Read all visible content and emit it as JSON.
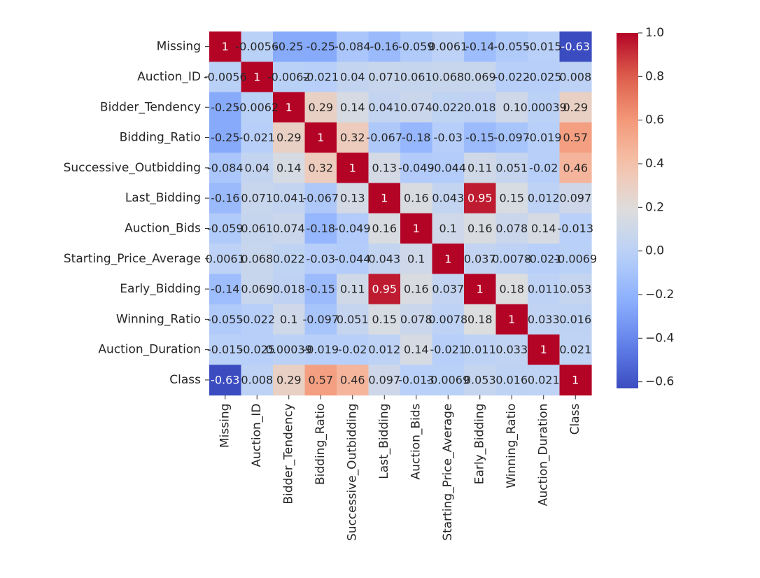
{
  "chart_data": {
    "type": "heatmap",
    "title": "",
    "colormap": "coolwarm",
    "vmin": -0.63,
    "vmax": 1.0,
    "row_labels": [
      "Missing",
      "Auction_ID",
      "Bidder_Tendency",
      "Bidding_Ratio",
      "Successive_Outbidding",
      "Last_Bidding",
      "Auction_Bids",
      "Starting_Price_Average",
      "Early_Bidding",
      "Winning_Ratio",
      "Auction_Duration",
      "Class"
    ],
    "col_labels": [
      "Missing",
      "Auction_ID",
      "Bidder_Tendency",
      "Bidding_Ratio",
      "Successive_Outbidding",
      "Last_Bidding",
      "Auction_Bids",
      "Starting_Price_Average",
      "Early_Bidding",
      "Winning_Ratio",
      "Auction_Duration",
      "Class"
    ],
    "values": [
      [
        1,
        -0.0056,
        -0.25,
        -0.25,
        -0.084,
        -0.16,
        -0.059,
        0.0061,
        -0.14,
        -0.055,
        -0.015,
        -0.63
      ],
      [
        -0.0056,
        1,
        -0.0062,
        -0.021,
        0.04,
        0.071,
        0.061,
        0.068,
        0.069,
        -0.022,
        -0.025,
        0.008
      ],
      [
        -0.25,
        -0.0062,
        1,
        0.29,
        0.14,
        0.041,
        0.074,
        0.022,
        0.018,
        0.1,
        0.00039,
        0.29
      ],
      [
        -0.25,
        -0.021,
        0.29,
        1,
        0.32,
        -0.067,
        -0.18,
        -0.03,
        -0.15,
        -0.097,
        -0.019,
        0.57
      ],
      [
        -0.084,
        0.04,
        0.14,
        0.32,
        1,
        0.13,
        -0.049,
        -0.044,
        0.11,
        0.051,
        -0.02,
        0.46
      ],
      [
        -0.16,
        0.071,
        0.041,
        -0.067,
        0.13,
        1,
        0.16,
        0.043,
        0.95,
        0.15,
        0.012,
        0.097
      ],
      [
        -0.059,
        0.061,
        0.074,
        -0.18,
        -0.049,
        0.16,
        1,
        0.1,
        0.16,
        0.078,
        0.14,
        -0.013
      ],
      [
        0.0061,
        0.068,
        0.022,
        -0.03,
        -0.044,
        0.043,
        0.1,
        1,
        0.037,
        0.0078,
        -0.021,
        -0.0069
      ],
      [
        -0.14,
        0.069,
        0.018,
        -0.15,
        0.11,
        0.95,
        0.16,
        0.037,
        1,
        0.18,
        0.011,
        0.053
      ],
      [
        -0.055,
        -0.022,
        0.1,
        -0.097,
        0.051,
        0.15,
        0.078,
        0.0078,
        0.18,
        1,
        0.033,
        0.016
      ],
      [
        -0.015,
        -0.025,
        0.00039,
        -0.019,
        -0.02,
        0.012,
        0.14,
        -0.021,
        0.011,
        0.033,
        1,
        0.021
      ],
      [
        -0.63,
        0.008,
        0.29,
        0.57,
        0.46,
        0.097,
        -0.013,
        -0.0069,
        0.053,
        0.016,
        0.021,
        1
      ]
    ],
    "display_labels": [
      [
        "1",
        "-0.0056",
        "-0.25",
        "-0.25",
        "-0.084",
        "-0.16",
        "-0.059",
        "0.0061",
        "-0.14",
        "-0.055",
        "-0.015",
        "-0.63"
      ],
      [
        "-0.0056",
        "1",
        "-0.0062",
        "-0.021",
        "0.04",
        "0.071",
        "0.061",
        "0.068",
        "0.069",
        "-0.022",
        "-0.025",
        "0.008"
      ],
      [
        "-0.25",
        "-0.0062",
        "1",
        "0.29",
        "0.14",
        "0.041",
        "0.074",
        "0.022",
        "0.018",
        "0.1",
        "0.00039",
        "0.29"
      ],
      [
        "-0.25",
        "-0.021",
        "0.29",
        "1",
        "0.32",
        "-0.067",
        "-0.18",
        "-0.03",
        "-0.15",
        "-0.097",
        "-0.019",
        "0.57"
      ],
      [
        "-0.084",
        "0.04",
        "0.14",
        "0.32",
        "1",
        "0.13",
        "-0.049",
        "-0.044",
        "0.11",
        "0.051",
        "-0.02",
        "0.46"
      ],
      [
        "-0.16",
        "0.071",
        "0.041",
        "-0.067",
        "0.13",
        "1",
        "0.16",
        "0.043",
        "0.95",
        "0.15",
        "0.012",
        "0.097"
      ],
      [
        "-0.059",
        "0.061",
        "0.074",
        "-0.18",
        "-0.049",
        "0.16",
        "1",
        "0.1",
        "0.16",
        "0.078",
        "0.14",
        "-0.013"
      ],
      [
        "0.0061",
        "0.068",
        "0.022",
        "-0.03",
        "-0.044",
        "0.043",
        "0.1",
        "1",
        "0.037",
        "0.0078",
        "-0.021",
        "-0.0069"
      ],
      [
        "-0.14",
        "0.069",
        "0.018",
        "-0.15",
        "0.11",
        "0.95",
        "0.16",
        "0.037",
        "1",
        "0.18",
        "0.011",
        "0.053"
      ],
      [
        "-0.055",
        "-0.022",
        "0.1",
        "-0.097",
        "0.051",
        "0.15",
        "0.078",
        "0.0078",
        "0.18",
        "1",
        "0.033",
        "0.016"
      ],
      [
        "-0.015",
        "-0.025",
        "0.00039",
        "-0.019",
        "-0.02",
        "0.012",
        "0.14",
        "-0.021",
        "0.011",
        "0.033",
        "1",
        "0.021"
      ],
      [
        "-0.63",
        "0.008",
        "0.29",
        "0.57",
        "0.46",
        "0.097",
        "-0.013",
        "-0.0069",
        "0.053",
        "0.016",
        "0.021",
        "1"
      ]
    ],
    "colorbar_ticks": [
      "1.0",
      "0.8",
      "0.6",
      "0.4",
      "0.2",
      "0.0",
      "−0.2",
      "−0.4",
      "−0.6"
    ],
    "colorbar_tick_values": [
      1.0,
      0.8,
      0.6,
      0.4,
      0.2,
      0.0,
      -0.2,
      -0.4,
      -0.6
    ]
  }
}
